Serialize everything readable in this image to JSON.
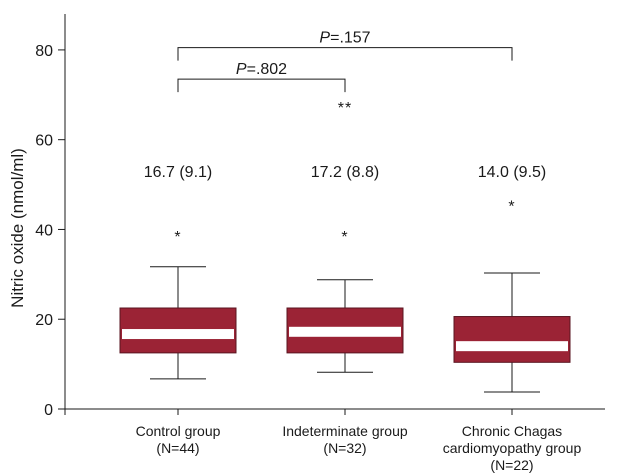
{
  "chart_data": {
    "type": "box",
    "ylabel": "Nitric oxide (nmol/ml)",
    "ylim": [
      0,
      88
    ],
    "yticks": [
      0,
      20,
      40,
      60,
      80
    ],
    "grid": false,
    "box_color": "#9b2335",
    "median_color": "#ffffff",
    "groups": [
      {
        "label_lines": [
          "Control group",
          "(N=44)"
        ],
        "mean_sd": "16.7 (9.1)",
        "whisker_low": 6.7,
        "q1": 12.5,
        "median": 16.7,
        "q3": 22.5,
        "whisker_high": 31.7,
        "outliers": [
          {
            "value": 39.2,
            "symbol": "*"
          }
        ]
      },
      {
        "label_lines": [
          "Indeterminate group",
          "(N=32)"
        ],
        "mean_sd": "17.2 (8.8)",
        "whisker_low": 8.2,
        "q1": 12.5,
        "median": 17.2,
        "q3": 22.5,
        "whisker_high": 28.8,
        "outliers": [
          {
            "value": 39.2,
            "symbol": "*"
          },
          {
            "value": 68.0,
            "symbol": "**"
          }
        ]
      },
      {
        "label_lines": [
          "Chronic Chagas",
          "cardiomyopathy group",
          "(N=22)"
        ],
        "mean_sd": "14.0 (9.5)",
        "whisker_low": 3.8,
        "q1": 10.4,
        "median": 14.0,
        "q3": 20.6,
        "whisker_high": 30.3,
        "outliers": [
          {
            "value": 46.0,
            "symbol": "*"
          }
        ]
      }
    ],
    "comparisons": [
      {
        "from": 0,
        "to": 1,
        "level": 73.5,
        "p_label": "P",
        "p_value": "=.802"
      },
      {
        "from": 0,
        "to": 2,
        "level": 80.5,
        "p_label": "P",
        "p_value": "=.157"
      }
    ]
  }
}
